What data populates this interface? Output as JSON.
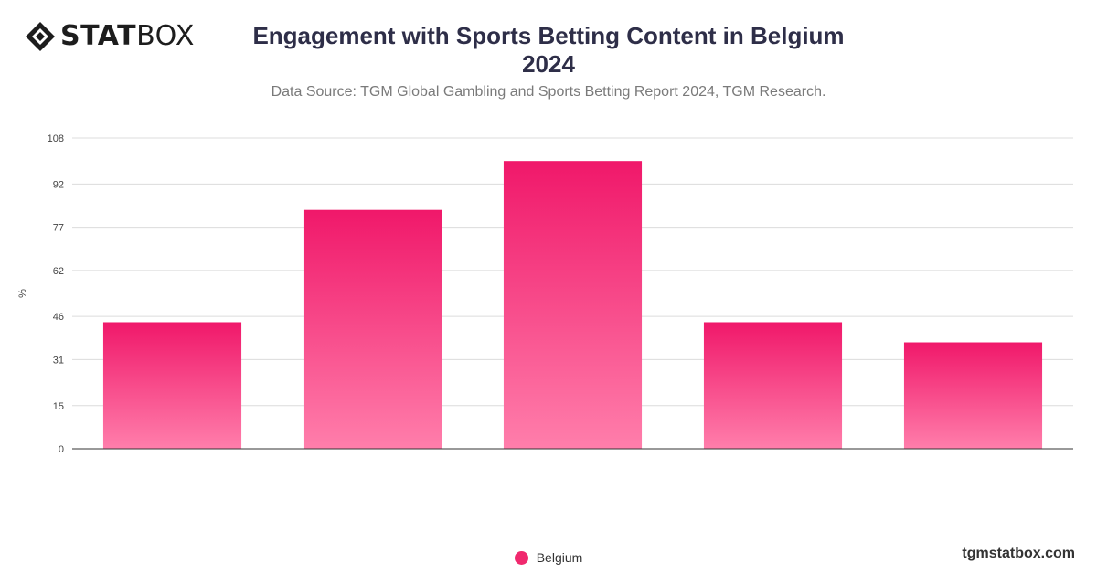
{
  "brand": {
    "logo_bold": "STAT",
    "logo_light": "BOX",
    "website": "tgmstatbox.com"
  },
  "header": {
    "title_line1": "Engagement with Sports Betting Content in Belgium",
    "title_line2": "2024",
    "subtitle": "Data Source: TGM Global Gambling and Sports Betting Report 2024, TGM Research."
  },
  "chart_data": {
    "type": "bar",
    "title": "Engagement with Sports Betting Content in Belgium 2024",
    "xlabel": "",
    "ylabel": "%",
    "ylim": [
      0,
      108
    ],
    "yticks": [
      0,
      15,
      31,
      46,
      62,
      77,
      92,
      108
    ],
    "grid": true,
    "legend_position": "bottom",
    "categories": [
      "",
      "",
      "",
      "",
      ""
    ],
    "series": [
      {
        "name": "Belgium",
        "values": [
          44,
          83,
          100,
          44,
          37
        ],
        "color": "#f0296e"
      }
    ]
  }
}
